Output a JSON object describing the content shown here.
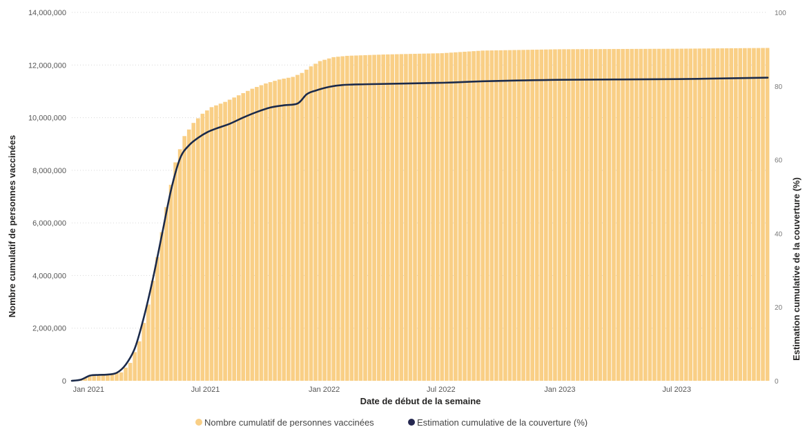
{
  "chart_data": {
    "type": "bar+line",
    "xlabel": "Date de début de la semaine",
    "ylabel_left": "Nombre cumulatif de personnes vaccinées",
    "ylabel_right": "Estimation cumulative de la couverture (%)",
    "y_left_range": [
      0,
      14000000
    ],
    "y_right_range": [
      0,
      100
    ],
    "y_left_ticks": [
      "0",
      "2,000,000",
      "4,000,000",
      "6,000,000",
      "8,000,000",
      "10,000,000",
      "12,000,000",
      "14,000,000"
    ],
    "y_right_ticks": [
      "0",
      "20",
      "40",
      "60",
      "80",
      "100"
    ],
    "x_ticks": [
      {
        "date": "2021-01-01",
        "label": "Jan 2021"
      },
      {
        "date": "2021-07-01",
        "label": "Jul 2021"
      },
      {
        "date": "2022-01-01",
        "label": "Jan 2022"
      },
      {
        "date": "2022-07-01",
        "label": "Jul 2022"
      },
      {
        "date": "2023-01-01",
        "label": "Jan 2023"
      },
      {
        "date": "2023-07-01",
        "label": "Jul 2023"
      }
    ],
    "x_range": [
      "2020-12-06",
      "2023-11-19"
    ],
    "grid": true,
    "legend_position": "bottom-center",
    "series": [
      {
        "name": "Nombre cumulatif de personnes vaccinées",
        "type": "bar",
        "color": "#F9CF86",
        "axis": "left",
        "points": [
          [
            "2020-12-13",
            10000
          ],
          [
            "2020-12-27",
            120000
          ],
          [
            "2021-01-10",
            210000
          ],
          [
            "2021-01-24",
            230000
          ],
          [
            "2021-02-07",
            250000
          ],
          [
            "2021-02-21",
            320000
          ],
          [
            "2021-03-07",
            680000
          ],
          [
            "2021-03-21",
            1500000
          ],
          [
            "2021-04-04",
            2900000
          ],
          [
            "2021-04-18",
            4700000
          ],
          [
            "2021-05-02",
            6600000
          ],
          [
            "2021-05-16",
            8300000
          ],
          [
            "2021-05-30",
            9300000
          ],
          [
            "2021-06-13",
            9800000
          ],
          [
            "2021-06-27",
            10150000
          ],
          [
            "2021-07-11",
            10400000
          ],
          [
            "2021-08-01",
            10600000
          ],
          [
            "2021-08-22",
            10850000
          ],
          [
            "2021-09-12",
            11100000
          ],
          [
            "2021-10-03",
            11300000
          ],
          [
            "2021-10-24",
            11450000
          ],
          [
            "2021-11-14",
            11550000
          ],
          [
            "2021-11-28",
            11700000
          ],
          [
            "2021-12-12",
            11950000
          ],
          [
            "2021-12-26",
            12150000
          ],
          [
            "2022-01-16",
            12300000
          ],
          [
            "2022-02-06",
            12350000
          ],
          [
            "2022-04-03",
            12400000
          ],
          [
            "2022-07-03",
            12450000
          ],
          [
            "2022-09-04",
            12550000
          ],
          [
            "2023-01-01",
            12600000
          ],
          [
            "2023-07-02",
            12620000
          ],
          [
            "2023-11-19",
            12650000
          ]
        ]
      },
      {
        "name": "Estimation cumulative de la couverture (%)",
        "type": "line",
        "color": "#12239E",
        "axis": "right",
        "points": [
          [
            "2020-12-06",
            0
          ],
          [
            "2020-12-20",
            0.3
          ],
          [
            "2021-01-03",
            1.4
          ],
          [
            "2021-01-17",
            1.6
          ],
          [
            "2021-01-31",
            1.7
          ],
          [
            "2021-02-14",
            2.2
          ],
          [
            "2021-02-28",
            4.5
          ],
          [
            "2021-03-14",
            9.0
          ],
          [
            "2021-03-28",
            17.5
          ],
          [
            "2021-04-11",
            28.0
          ],
          [
            "2021-04-25",
            40.0
          ],
          [
            "2021-05-09",
            52.0
          ],
          [
            "2021-05-23",
            60.5
          ],
          [
            "2021-06-06",
            64.0
          ],
          [
            "2021-06-20",
            66.0
          ],
          [
            "2021-07-04",
            67.5
          ],
          [
            "2021-07-18",
            68.5
          ],
          [
            "2021-08-08",
            69.8
          ],
          [
            "2021-08-29",
            71.5
          ],
          [
            "2021-09-19",
            73.0
          ],
          [
            "2021-10-10",
            74.2
          ],
          [
            "2021-10-31",
            74.8
          ],
          [
            "2021-11-21",
            75.3
          ],
          [
            "2021-12-05",
            77.8
          ],
          [
            "2021-12-19",
            78.8
          ],
          [
            "2022-01-09",
            79.8
          ],
          [
            "2022-01-30",
            80.3
          ],
          [
            "2022-03-06",
            80.5
          ],
          [
            "2022-07-03",
            80.9
          ],
          [
            "2022-09-04",
            81.3
          ],
          [
            "2023-01-01",
            81.7
          ],
          [
            "2023-07-02",
            81.9
          ],
          [
            "2023-11-19",
            82.3
          ]
        ]
      }
    ]
  }
}
